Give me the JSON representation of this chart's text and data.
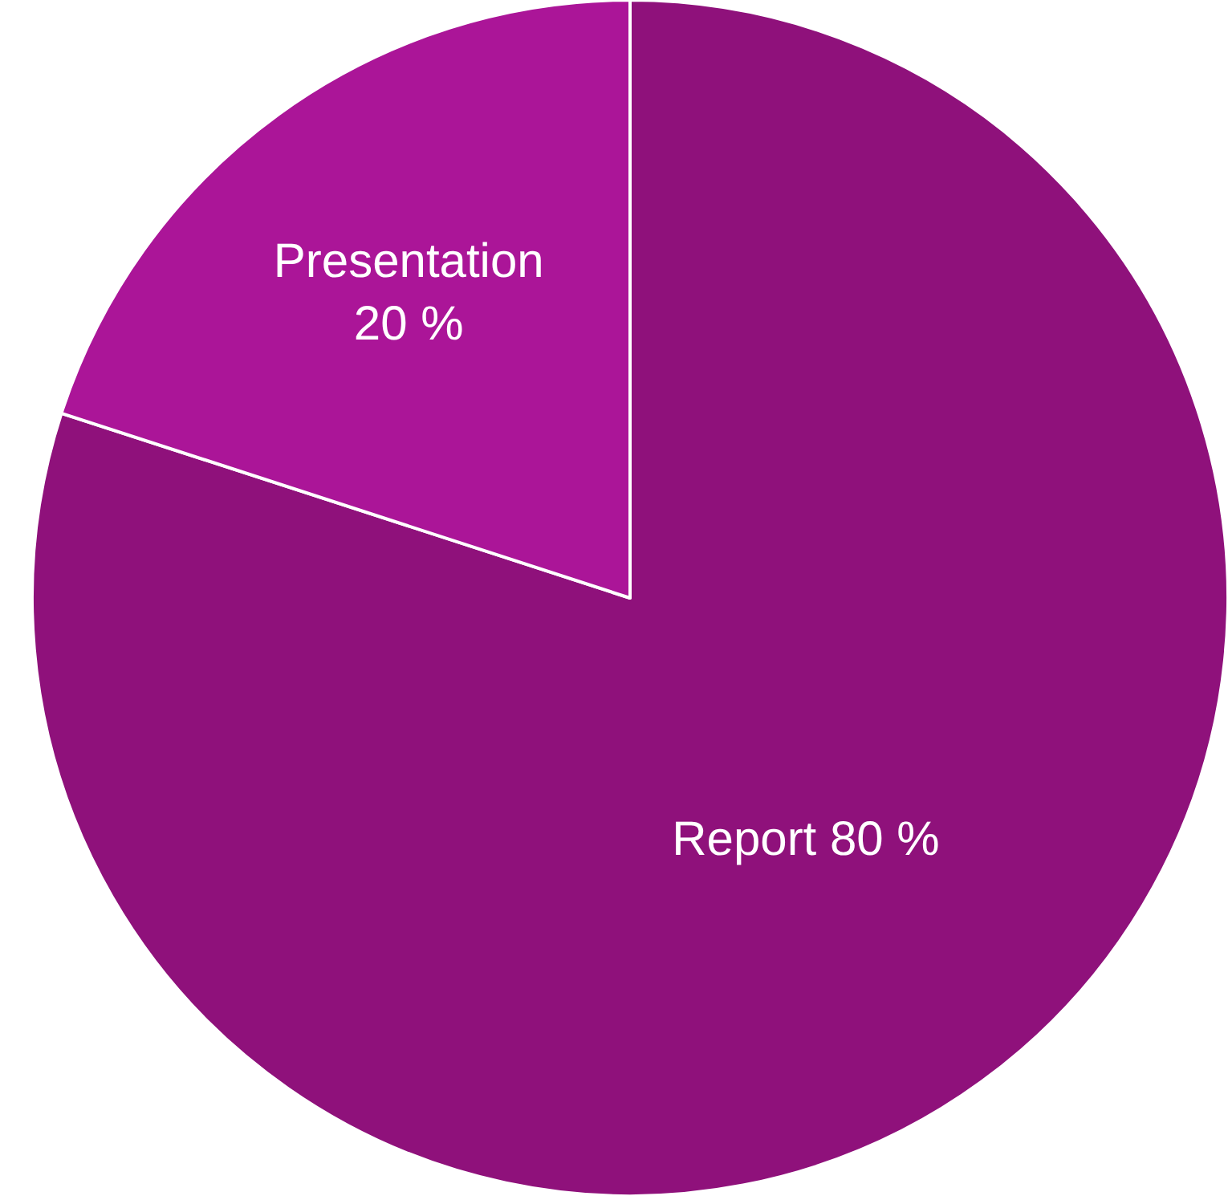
{
  "chart_data": {
    "type": "pie",
    "categories": [
      "Report",
      "Presentation"
    ],
    "values": [
      80,
      20
    ],
    "colors": [
      "#8f117b",
      "#ab1598"
    ],
    "value_labels": [
      "80 %",
      "20 %"
    ],
    "legend": false
  }
}
